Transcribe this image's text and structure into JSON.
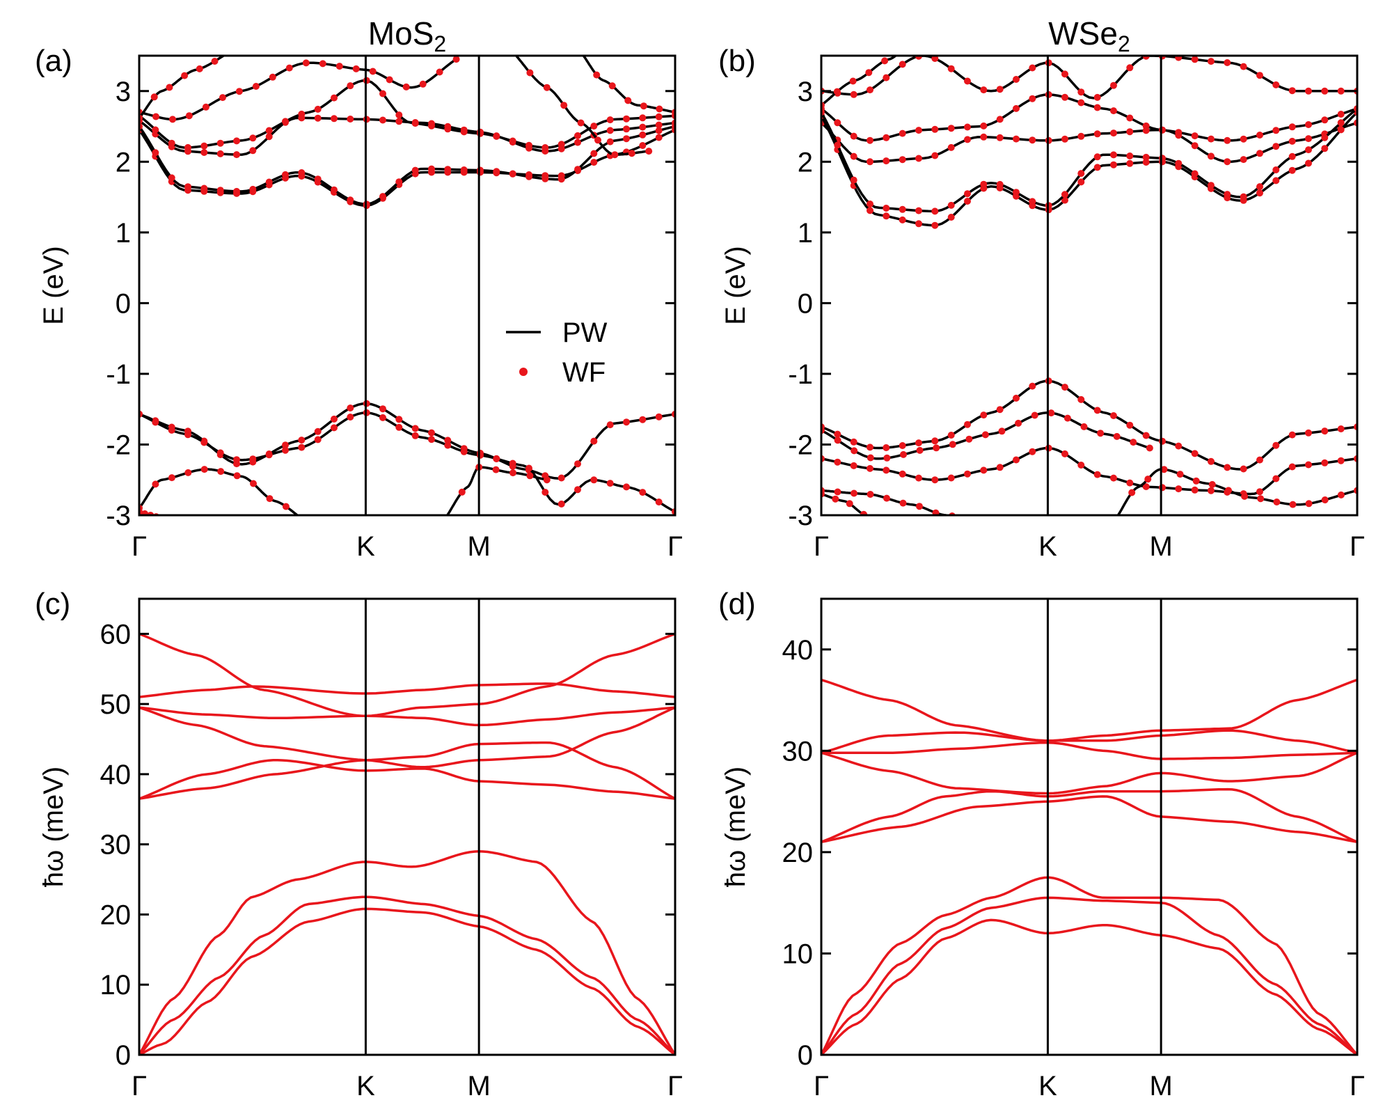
{
  "chart_data": [
    {
      "id": "a",
      "type": "line",
      "panel_label": "(a)",
      "title": "MoS2",
      "title_main": "MoS",
      "title_sub": "2",
      "ylabel": "E (eV)",
      "ylim": [
        -3,
        3.5
      ],
      "yticks": [
        -3,
        -2,
        -1,
        0,
        1,
        2,
        3
      ],
      "xlabels": [
        "Γ",
        "K",
        "M",
        "Γ"
      ],
      "kpath": [
        0,
        1,
        1.5,
        2.366
      ],
      "legend": {
        "position": "center-right",
        "entries": [
          "PW",
          "WF"
        ]
      },
      "series": [
        {
          "name": "c1",
          "x": [
            0,
            0.2,
            0.45,
            0.7,
            1,
            1.25,
            1.5,
            1.8,
            2.1,
            2.366
          ],
          "values": [
            2.58,
            2.15,
            2.1,
            2.62,
            2.6,
            2.55,
            2.42,
            2.15,
            2.45,
            2.55
          ]
        },
        {
          "name": "c2",
          "x": [
            0,
            0.2,
            0.45,
            0.75,
            1,
            1.2,
            1.5,
            1.8,
            2.1,
            2.366
          ],
          "values": [
            2.65,
            2.2,
            2.3,
            2.7,
            3.15,
            2.55,
            2.4,
            2.2,
            2.6,
            2.65
          ]
        },
        {
          "name": "c3",
          "x": [
            0,
            0.15,
            0.45,
            0.75,
            1,
            1.2,
            1.4
          ],
          "values": [
            2.7,
            2.6,
            3.0,
            3.4,
            3.3,
            3.05,
            3.45
          ]
        },
        {
          "name": "c4",
          "x": [
            0,
            0.2,
            0.45,
            0.7,
            1,
            1.25,
            1.5,
            1.85,
            2.1,
            2.366
          ],
          "values": [
            2.45,
            1.6,
            1.55,
            1.8,
            1.38,
            1.85,
            1.85,
            1.8,
            2.1,
            2.45
          ]
        },
        {
          "name": "c5",
          "x": [
            0,
            0.2,
            0.45,
            0.7,
            1,
            1.25,
            1.5,
            1.85,
            2.1,
            2.366
          ],
          "values": [
            2.5,
            1.65,
            1.58,
            1.85,
            1.4,
            1.9,
            1.88,
            1.75,
            2.3,
            2.5
          ]
        },
        {
          "name": "c6",
          "x": [
            0,
            0.1,
            0.25,
            0.4
          ],
          "values": [
            2.62,
            3.0,
            3.3,
            3.55
          ]
        },
        {
          "name": "c7",
          "x": [
            1.65,
            1.8,
            1.95,
            2.1,
            2.25
          ],
          "values": [
            3.55,
            3.05,
            2.55,
            2.1,
            2.15
          ]
        },
        {
          "name": "c8",
          "x": [
            1.95,
            2.05,
            2.2,
            2.366
          ],
          "values": [
            3.55,
            3.15,
            2.8,
            2.7
          ]
        },
        {
          "name": "v1",
          "x": [
            0,
            0.2,
            0.45,
            0.7,
            1,
            1.25,
            1.5,
            1.7,
            1.85,
            2.1,
            2.366
          ],
          "values": [
            -1.57,
            -1.8,
            -2.28,
            -1.95,
            -1.42,
            -1.8,
            -2.12,
            -2.35,
            -2.48,
            -1.7,
            -1.57
          ]
        },
        {
          "name": "v2",
          "x": [
            0,
            0.2,
            0.45,
            0.7,
            1,
            1.25,
            1.5,
            1.7,
            1.85,
            2.0,
            2.15,
            2.366
          ],
          "values": [
            -1.57,
            -1.85,
            -2.22,
            -2.05,
            -1.55,
            -1.9,
            -2.15,
            -2.3,
            -2.85,
            -2.5,
            -2.6,
            -2.95
          ]
        },
        {
          "name": "v3",
          "x": [
            0,
            0.1,
            0.3,
            0.45,
            0.6,
            0.72
          ],
          "values": [
            -2.9,
            -2.5,
            -2.35,
            -2.45,
            -2.8,
            -3.05
          ]
        },
        {
          "name": "v4",
          "x": [
            0,
            0.05,
            0.1
          ],
          "values": [
            -2.95,
            -3.0,
            -3.05
          ]
        },
        {
          "name": "v5",
          "x": [
            1.35,
            1.45,
            1.5,
            1.65,
            1.8
          ],
          "values": [
            -3.05,
            -2.6,
            -2.32,
            -2.4,
            -2.5
          ]
        }
      ]
    },
    {
      "id": "b",
      "type": "line",
      "panel_label": "(b)",
      "title": "WSe2",
      "title_main": "WSe",
      "title_sub": "2",
      "ylabel": "E (eV)",
      "ylim": [
        -3,
        3.5
      ],
      "yticks": [
        -3,
        -2,
        -1,
        0,
        1,
        2,
        3
      ],
      "xlabels": [
        "Γ",
        "K",
        "M",
        "Γ"
      ],
      "kpath": [
        0,
        1,
        1.5,
        2.366
      ],
      "series": [
        {
          "name": "c1",
          "x": [
            0,
            0.2,
            0.45,
            0.7,
            1,
            1.25,
            1.5,
            1.8,
            2.1,
            2.366
          ],
          "values": [
            2.55,
            2.0,
            2.05,
            2.35,
            2.3,
            2.4,
            2.45,
            2.0,
            2.3,
            2.55
          ]
        },
        {
          "name": "c2",
          "x": [
            0,
            0.2,
            0.45,
            0.7,
            1,
            1.25,
            1.5,
            1.8,
            2.1,
            2.366
          ],
          "values": [
            2.75,
            2.3,
            2.45,
            2.5,
            2.95,
            2.75,
            2.45,
            2.3,
            2.5,
            2.75
          ]
        },
        {
          "name": "c3",
          "x": [
            0,
            0.15,
            0.45,
            0.75,
            1,
            1.2,
            1.45,
            1.8,
            2.1,
            2.366
          ],
          "values": [
            3.0,
            2.95,
            3.5,
            3.0,
            3.4,
            2.9,
            3.5,
            3.4,
            3.0,
            3.0
          ]
        },
        {
          "name": "c4",
          "x": [
            0,
            0.25,
            0.5,
            0.75,
            1,
            1.25,
            1.5,
            1.85,
            2.1,
            2.366
          ],
          "values": [
            2.65,
            1.25,
            1.1,
            1.65,
            1.32,
            1.95,
            2.0,
            1.45,
            1.9,
            2.7
          ]
        },
        {
          "name": "c5",
          "x": [
            0,
            0.25,
            0.5,
            0.75,
            1,
            1.25,
            1.5,
            1.85,
            2.1,
            2.366
          ],
          "values": [
            2.7,
            1.35,
            1.3,
            1.7,
            1.38,
            2.1,
            2.05,
            1.5,
            2.1,
            2.75
          ]
        },
        {
          "name": "c6",
          "x": [
            0,
            0.15,
            0.3,
            0.35
          ],
          "values": [
            2.8,
            3.15,
            3.45,
            3.55
          ]
        },
        {
          "name": "v1",
          "x": [
            0,
            0.25,
            0.5,
            0.75,
            1,
            1.25,
            1.5,
            1.85,
            2.1,
            2.366
          ],
          "values": [
            -1.75,
            -2.05,
            -1.95,
            -1.55,
            -1.1,
            -1.55,
            -1.95,
            -2.35,
            -1.85,
            -1.75
          ]
        },
        {
          "name": "v2",
          "x": [
            0,
            0.25,
            0.5,
            0.75,
            1,
            1.25,
            1.45
          ],
          "values": [
            -1.8,
            -2.2,
            -2.05,
            -1.85,
            -1.55,
            -1.85,
            -2.05
          ]
        },
        {
          "name": "v3",
          "x": [
            0,
            0.25,
            0.5,
            0.75,
            1,
            1.25,
            1.45,
            1.7,
            1.9,
            2.1,
            2.366
          ],
          "values": [
            -2.2,
            -2.35,
            -2.5,
            -2.35,
            -2.05,
            -2.45,
            -2.6,
            -2.65,
            -2.7,
            -2.3,
            -2.2
          ]
        },
        {
          "name": "v4",
          "x": [
            0,
            0.2,
            0.4,
            0.55,
            0.65
          ],
          "values": [
            -2.65,
            -2.7,
            -2.85,
            -3.0,
            -3.05
          ]
        },
        {
          "name": "v5",
          "x": [
            0,
            0.1,
            0.2,
            0.25
          ],
          "values": [
            -2.7,
            -2.8,
            -3.0,
            -3.05
          ]
        },
        {
          "name": "v6",
          "x": [
            1.3,
            1.4,
            1.5,
            1.7,
            1.9,
            2.1,
            2.366
          ],
          "values": [
            -3.05,
            -2.6,
            -2.35,
            -2.55,
            -2.75,
            -2.85,
            -2.65
          ]
        }
      ]
    },
    {
      "id": "c",
      "type": "line",
      "panel_label": "(c)",
      "ylabel": "ħω (meV)",
      "ylim": [
        0,
        65
      ],
      "yticks": [
        0,
        10,
        20,
        30,
        40,
        50,
        60
      ],
      "xlabels": [
        "Γ",
        "K",
        "M",
        "Γ"
      ],
      "kpath": [
        0,
        1,
        1.5,
        2.366
      ],
      "series": [
        {
          "name": "ZA",
          "x": [
            0,
            0.1,
            0.3,
            0.5,
            0.75,
            1,
            1.25,
            1.5,
            1.75,
            2.0,
            2.2,
            2.366
          ],
          "values": [
            0,
            1.5,
            7.5,
            14,
            19,
            20.8,
            20.3,
            18.3,
            15,
            9.5,
            4,
            0
          ]
        },
        {
          "name": "TA",
          "x": [
            0,
            0.15,
            0.35,
            0.55,
            0.75,
            1,
            1.25,
            1.5,
            1.75,
            2.0,
            2.2,
            2.366
          ],
          "values": [
            0,
            5,
            11,
            17,
            21.5,
            22.5,
            21.5,
            19.8,
            16.5,
            11,
            5,
            0
          ]
        },
        {
          "name": "LA",
          "x": [
            0,
            0.15,
            0.35,
            0.5,
            0.7,
            1,
            1.2,
            1.5,
            1.75,
            2.0,
            2.2,
            2.366
          ],
          "values": [
            0,
            8,
            17,
            22.5,
            25,
            27.5,
            26.8,
            29,
            27.5,
            19,
            8,
            0
          ]
        },
        {
          "name": "O1",
          "x": [
            0,
            0.3,
            0.6,
            1,
            1.25,
            1.5,
            1.8,
            2.1,
            2.366
          ],
          "values": [
            36.5,
            38,
            40,
            42,
            42.5,
            44.3,
            44.5,
            41,
            36.5
          ]
        },
        {
          "name": "O2",
          "x": [
            0,
            0.3,
            0.6,
            1,
            1.25,
            1.5,
            1.8,
            2.1,
            2.366
          ],
          "values": [
            36.5,
            40,
            42,
            40.5,
            40.8,
            39,
            38.5,
            37.5,
            36.5
          ]
        },
        {
          "name": "O3",
          "x": [
            0,
            0.25,
            0.55,
            1,
            1.25,
            1.5,
            1.8,
            2.1,
            2.366
          ],
          "values": [
            49.5,
            47,
            44,
            42,
            41,
            42,
            42.5,
            46,
            49.5
          ]
        },
        {
          "name": "O4",
          "x": [
            0,
            0.3,
            0.6,
            1,
            1.25,
            1.5,
            1.8,
            2.1,
            2.366
          ],
          "values": [
            49.5,
            48.5,
            48,
            48.3,
            48,
            47,
            47.8,
            48.8,
            49.5
          ]
        },
        {
          "name": "O5",
          "x": [
            0,
            0.3,
            0.5,
            1,
            1.25,
            1.5,
            1.8,
            2.1,
            2.366
          ],
          "values": [
            51,
            52,
            52.5,
            51.5,
            52,
            52.7,
            52.9,
            51.8,
            51
          ]
        },
        {
          "name": "O6",
          "x": [
            0,
            0.25,
            0.55,
            1,
            1.25,
            1.5,
            1.8,
            2.1,
            2.366
          ],
          "values": [
            60,
            57,
            52,
            48.3,
            49.5,
            50,
            52.5,
            57,
            60
          ]
        }
      ]
    },
    {
      "id": "d",
      "type": "line",
      "panel_label": "(d)",
      "ylabel": "ħω (meV)",
      "ylim": [
        0,
        45
      ],
      "yticks": [
        0,
        10,
        20,
        30,
        40
      ],
      "xlabels": [
        "Γ",
        "K",
        "M",
        "Γ"
      ],
      "kpath": [
        0,
        1,
        1.5,
        2.366
      ],
      "series": [
        {
          "name": "ZA",
          "x": [
            0,
            0.15,
            0.35,
            0.55,
            0.75,
            1,
            1.25,
            1.5,
            1.75,
            2.0,
            2.2,
            2.366
          ],
          "values": [
            0,
            3,
            7.5,
            11.5,
            13.3,
            12,
            12.8,
            11.8,
            10.5,
            6,
            2.5,
            0
          ]
        },
        {
          "name": "TA",
          "x": [
            0,
            0.15,
            0.35,
            0.55,
            0.75,
            1,
            1.25,
            1.5,
            1.75,
            2.0,
            2.2,
            2.366
          ],
          "values": [
            0,
            4,
            9,
            12.5,
            14.5,
            15.5,
            15.2,
            15,
            11.8,
            7,
            3,
            0
          ]
        },
        {
          "name": "LA",
          "x": [
            0,
            0.15,
            0.35,
            0.55,
            0.75,
            1,
            1.25,
            1.5,
            1.75,
            2.0,
            2.2,
            2.366
          ],
          "values": [
            0,
            6,
            11,
            13.8,
            15.5,
            17.5,
            15.5,
            15.5,
            15.3,
            11,
            4,
            0
          ]
        },
        {
          "name": "O1",
          "x": [
            0,
            0.35,
            0.7,
            1,
            1.25,
            1.5,
            1.8,
            2.1,
            2.366
          ],
          "values": [
            21,
            22.5,
            24.5,
            25,
            25.5,
            23.5,
            23,
            22,
            21
          ]
        },
        {
          "name": "O2",
          "x": [
            0,
            0.3,
            0.55,
            0.75,
            1,
            1.25,
            1.5,
            1.8,
            2.1,
            2.366
          ],
          "values": [
            21,
            23.5,
            25.5,
            26,
            25.5,
            26,
            26,
            26.2,
            23.5,
            21
          ]
        },
        {
          "name": "O3",
          "x": [
            0,
            0.3,
            0.6,
            1,
            1.25,
            1.5,
            1.8,
            2.1,
            2.366
          ],
          "values": [
            29.8,
            28,
            26.3,
            25.8,
            26.5,
            27.8,
            27,
            27.5,
            29.8
          ]
        },
        {
          "name": "O4",
          "x": [
            0,
            0.3,
            0.6,
            1,
            1.25,
            1.5,
            1.8,
            2.1,
            2.366
          ],
          "values": [
            29.8,
            29.8,
            30.2,
            30.8,
            30,
            29.2,
            29.3,
            29.6,
            29.8
          ]
        },
        {
          "name": "O5",
          "x": [
            0,
            0.3,
            0.6,
            1,
            1.25,
            1.5,
            1.8,
            2.1,
            2.366
          ],
          "values": [
            29.8,
            31.5,
            31.8,
            31,
            31,
            31.5,
            32,
            31,
            29.8
          ]
        },
        {
          "name": "O6",
          "x": [
            0,
            0.3,
            0.6,
            1,
            1.25,
            1.5,
            1.8,
            2.1,
            2.366
          ],
          "values": [
            37,
            35,
            32.5,
            31,
            31.5,
            32,
            32.2,
            35,
            37
          ]
        }
      ]
    }
  ],
  "legend": {
    "pw_label": "PW",
    "wf_label": "WF"
  },
  "colors": {
    "pw": "#000000",
    "wf": "#e8161c",
    "phonon": "#e8161c",
    "frame": "#000000"
  }
}
